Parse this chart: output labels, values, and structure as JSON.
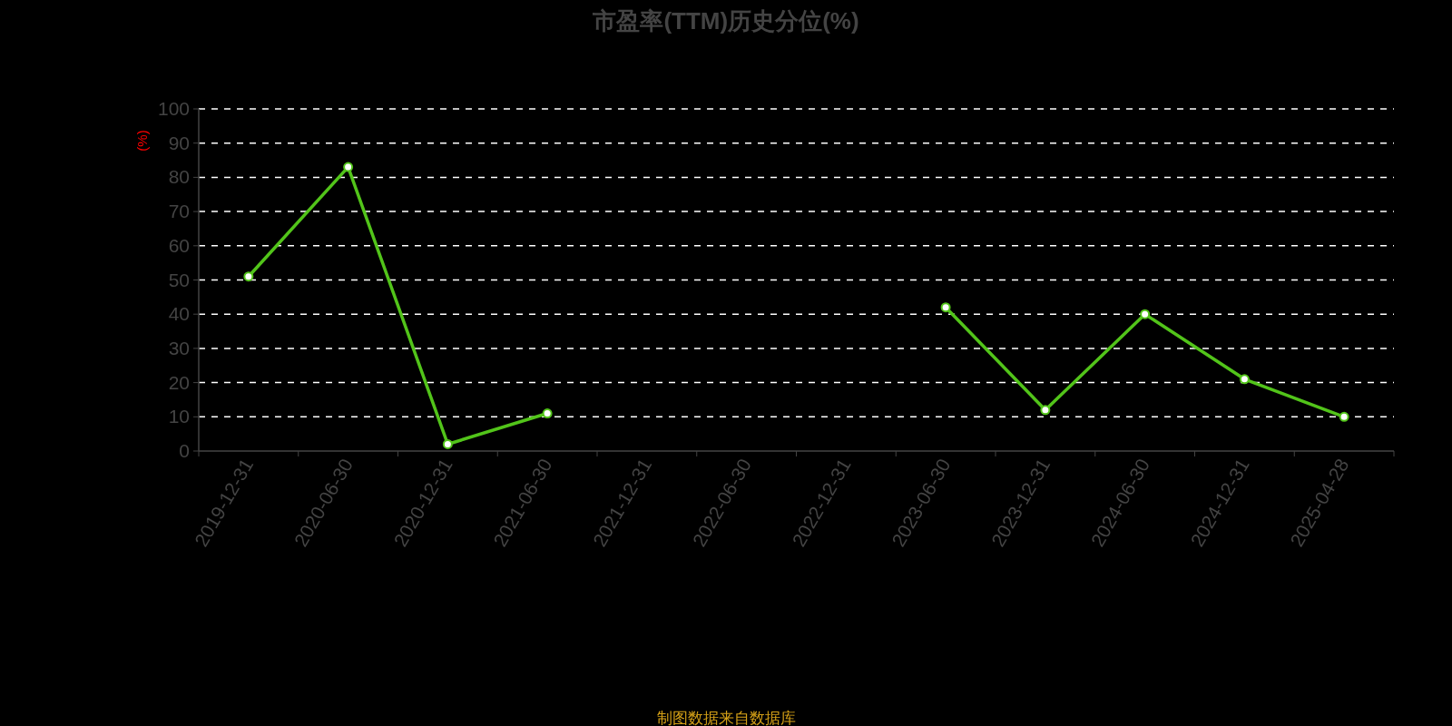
{
  "chart_data": {
    "type": "line",
    "title": "市盈率(TTM)历史分位(%)",
    "ylabel": "(%)",
    "categories": [
      "2019-12-31",
      "2020-06-30",
      "2020-12-31",
      "2021-06-30",
      "2021-12-31",
      "2022-06-30",
      "2022-12-31",
      "2023-06-30",
      "2023-12-31",
      "2024-06-30",
      "2024-12-31",
      "2025-04-28"
    ],
    "series": [
      {
        "color": "#52c41a",
        "values": [
          51,
          83,
          2,
          11,
          null,
          null,
          null,
          42,
          12,
          40,
          21,
          10
        ]
      }
    ],
    "ylim": [
      0,
      100
    ],
    "yticks": [
      0,
      10,
      20,
      30,
      40,
      50,
      60,
      70,
      80,
      90,
      100
    ],
    "grid": "y",
    "marker": "circle",
    "line_style": "solid",
    "annotations": [
      "制图数据来自数据库"
    ]
  }
}
